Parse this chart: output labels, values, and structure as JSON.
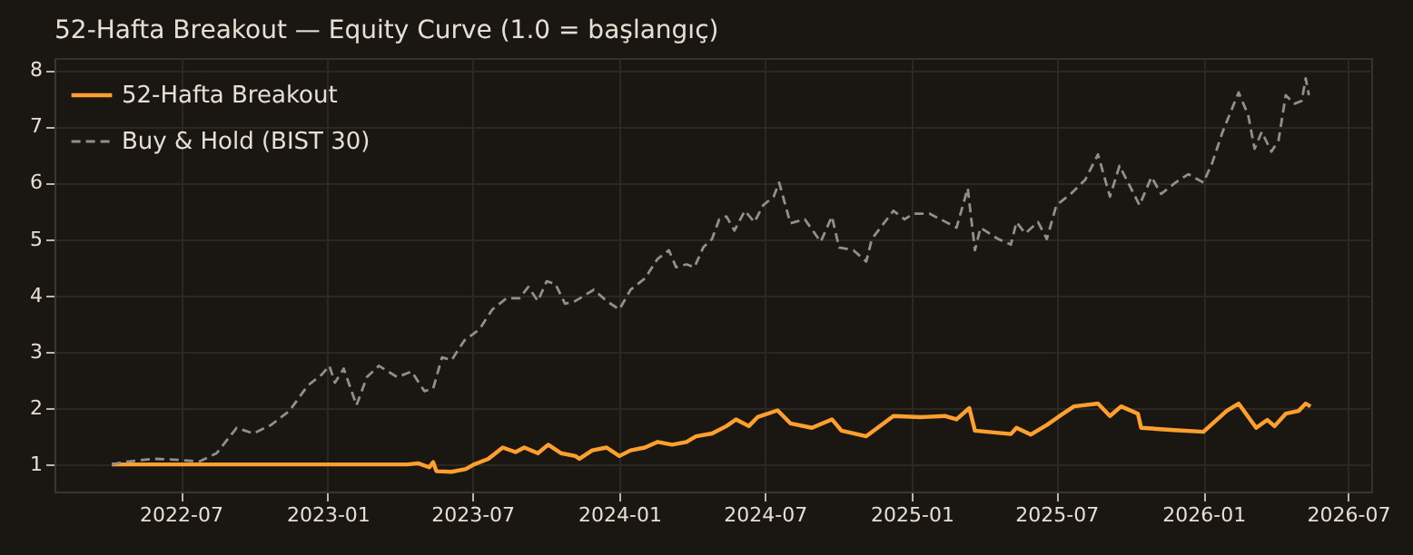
{
  "chart_data": {
    "type": "line",
    "title": "52-Hafta Breakout — Equity Curve (1.0 = başlangıç)",
    "xlim": [
      "2022-01-24",
      "2026-07-30"
    ],
    "ylim": [
      0.52,
      8.21
    ],
    "xticks": [
      {
        "value": "2022-07-01",
        "label": "2022-07"
      },
      {
        "value": "2023-01-01",
        "label": "2023-01"
      },
      {
        "value": "2023-07-01",
        "label": "2023-07"
      },
      {
        "value": "2024-01-01",
        "label": "2024-01"
      },
      {
        "value": "2024-07-01",
        "label": "2024-07"
      },
      {
        "value": "2025-01-01",
        "label": "2025-01"
      },
      {
        "value": "2025-07-01",
        "label": "2025-07"
      },
      {
        "value": "2026-01-01",
        "label": "2026-01"
      },
      {
        "value": "2026-07-01",
        "label": "2026-07"
      }
    ],
    "yticks": [
      1,
      2,
      3,
      4,
      5,
      6,
      7,
      8
    ],
    "grid": true,
    "legend": "top left",
    "series": [
      {
        "name": "52-Hafta Breakout",
        "color": "#ffa02e",
        "line_style": "solid",
        "x": [
          "2022-04-06",
          "2023-04-11",
          "2023-04-24",
          "2023-05-08",
          "2023-05-13",
          "2023-05-17",
          "2023-06-05",
          "2023-06-16",
          "2023-06-23",
          "2023-07-03",
          "2023-07-21",
          "2023-08-08",
          "2023-08-24",
          "2023-09-04",
          "2023-09-21",
          "2023-10-04",
          "2023-10-20",
          "2023-11-07",
          "2023-11-12",
          "2023-11-28",
          "2023-12-16",
          "2024-01-01",
          "2024-01-15",
          "2024-02-02",
          "2024-02-18",
          "2024-03-07",
          "2024-03-25",
          "2024-04-06",
          "2024-04-26",
          "2024-05-14",
          "2024-05-26",
          "2024-06-11",
          "2024-06-22",
          "2024-07-17",
          "2024-08-02",
          "2024-08-29",
          "2024-09-23",
          "2024-10-05",
          "2024-11-05",
          "2024-12-09",
          "2025-01-12",
          "2025-02-11",
          "2025-02-26",
          "2025-03-14",
          "2025-03-21",
          "2025-05-05",
          "2025-05-12",
          "2025-05-30",
          "2025-06-19",
          "2025-07-03",
          "2025-07-23",
          "2025-08-22",
          "2025-09-06",
          "2025-09-20",
          "2025-10-11",
          "2025-10-15",
          "2025-11-25",
          "2026-01-01",
          "2026-01-30",
          "2026-02-14",
          "2026-03-08",
          "2026-03-22",
          "2026-03-31",
          "2026-04-14",
          "2026-04-30",
          "2026-05-09",
          "2026-05-15"
        ],
        "values": [
          1.0,
          1.0,
          1.02,
          0.95,
          1.04,
          0.88,
          0.87,
          0.9,
          0.92,
          1.0,
          1.1,
          1.3,
          1.22,
          1.3,
          1.2,
          1.35,
          1.2,
          1.15,
          1.1,
          1.25,
          1.3,
          1.15,
          1.25,
          1.3,
          1.4,
          1.35,
          1.4,
          1.5,
          1.55,
          1.68,
          1.8,
          1.68,
          1.84,
          1.96,
          1.73,
          1.65,
          1.8,
          1.6,
          1.5,
          1.86,
          1.84,
          1.86,
          1.8,
          2.0,
          1.6,
          1.54,
          1.65,
          1.53,
          1.7,
          1.84,
          2.03,
          2.08,
          1.86,
          2.03,
          1.9,
          1.65,
          1.61,
          1.58,
          1.95,
          2.08,
          1.65,
          1.79,
          1.68,
          1.9,
          1.95,
          2.08,
          2.03
        ]
      },
      {
        "name": "Buy & Hold (BIST 30)",
        "color": "#8f8f8f",
        "line_style": "dashed",
        "x": [
          "2022-04-06",
          "2022-04-24",
          "2022-05-28",
          "2022-07-01",
          "2022-07-24",
          "2022-08-15",
          "2022-09-09",
          "2022-09-30",
          "2022-10-22",
          "2022-11-14",
          "2022-12-07",
          "2022-12-25",
          "2023-01-03",
          "2023-01-10",
          "2023-01-21",
          "2023-02-06",
          "2023-02-19",
          "2023-03-06",
          "2023-03-29",
          "2023-04-16",
          "2023-05-02",
          "2023-05-13",
          "2023-05-24",
          "2023-06-05",
          "2023-06-21",
          "2023-07-10",
          "2023-07-26",
          "2023-08-13",
          "2023-08-29",
          "2023-09-09",
          "2023-09-21",
          "2023-10-02",
          "2023-10-13",
          "2023-10-25",
          "2023-11-07",
          "2023-11-30",
          "2023-12-16",
          "2024-01-01",
          "2024-01-15",
          "2024-02-02",
          "2024-02-18",
          "2024-03-03",
          "2024-03-12",
          "2024-03-25",
          "2024-04-04",
          "2024-04-15",
          "2024-04-26",
          "2024-05-05",
          "2024-05-14",
          "2024-05-24",
          "2024-06-06",
          "2024-06-18",
          "2024-06-29",
          "2024-07-12",
          "2024-07-19",
          "2024-08-02",
          "2024-08-20",
          "2024-09-09",
          "2024-09-23",
          "2024-10-02",
          "2024-10-20",
          "2024-11-05",
          "2024-11-12",
          "2024-12-09",
          "2024-12-23",
          "2025-01-03",
          "2025-01-23",
          "2025-02-06",
          "2025-02-26",
          "2025-03-12",
          "2025-03-21",
          "2025-03-28",
          "2025-04-19",
          "2025-05-05",
          "2025-05-12",
          "2025-05-23",
          "2025-06-08",
          "2025-06-19",
          "2025-07-01",
          "2025-07-19",
          "2025-08-06",
          "2025-08-22",
          "2025-09-06",
          "2025-09-18",
          "2025-10-13",
          "2025-10-28",
          "2025-11-09",
          "2025-11-27",
          "2025-12-13",
          "2026-01-01",
          "2026-01-12",
          "2026-01-25",
          "2026-02-14",
          "2026-02-26",
          "2026-03-06",
          "2026-03-15",
          "2026-03-27",
          "2026-04-05",
          "2026-04-14",
          "2026-04-25",
          "2026-05-04",
          "2026-05-09",
          "2026-05-13"
        ],
        "values": [
          1.0,
          1.05,
          1.1,
          1.08,
          1.05,
          1.2,
          1.65,
          1.55,
          1.7,
          1.95,
          2.4,
          2.6,
          2.75,
          2.45,
          2.7,
          2.05,
          2.55,
          2.75,
          2.55,
          2.65,
          2.3,
          2.35,
          2.9,
          2.85,
          3.2,
          3.4,
          3.75,
          3.95,
          3.95,
          4.15,
          3.9,
          4.25,
          4.2,
          3.85,
          3.9,
          4.1,
          3.9,
          3.75,
          4.1,
          4.3,
          4.65,
          4.8,
          4.5,
          4.55,
          4.5,
          4.85,
          5.0,
          5.35,
          5.4,
          5.15,
          5.5,
          5.3,
          5.6,
          5.75,
          6.0,
          5.28,
          5.35,
          4.95,
          5.4,
          4.85,
          4.8,
          4.6,
          5.0,
          5.5,
          5.35,
          5.45,
          5.45,
          5.35,
          5.2,
          5.9,
          4.8,
          5.2,
          5.0,
          4.9,
          5.3,
          5.1,
          5.3,
          5.0,
          5.6,
          5.8,
          6.05,
          6.5,
          5.75,
          6.3,
          5.6,
          6.1,
          5.8,
          6.0,
          6.15,
          6.0,
          6.35,
          6.9,
          7.6,
          7.2,
          6.6,
          6.9,
          6.55,
          6.75,
          7.55,
          7.4,
          7.45,
          7.85,
          7.55
        ]
      }
    ]
  }
}
